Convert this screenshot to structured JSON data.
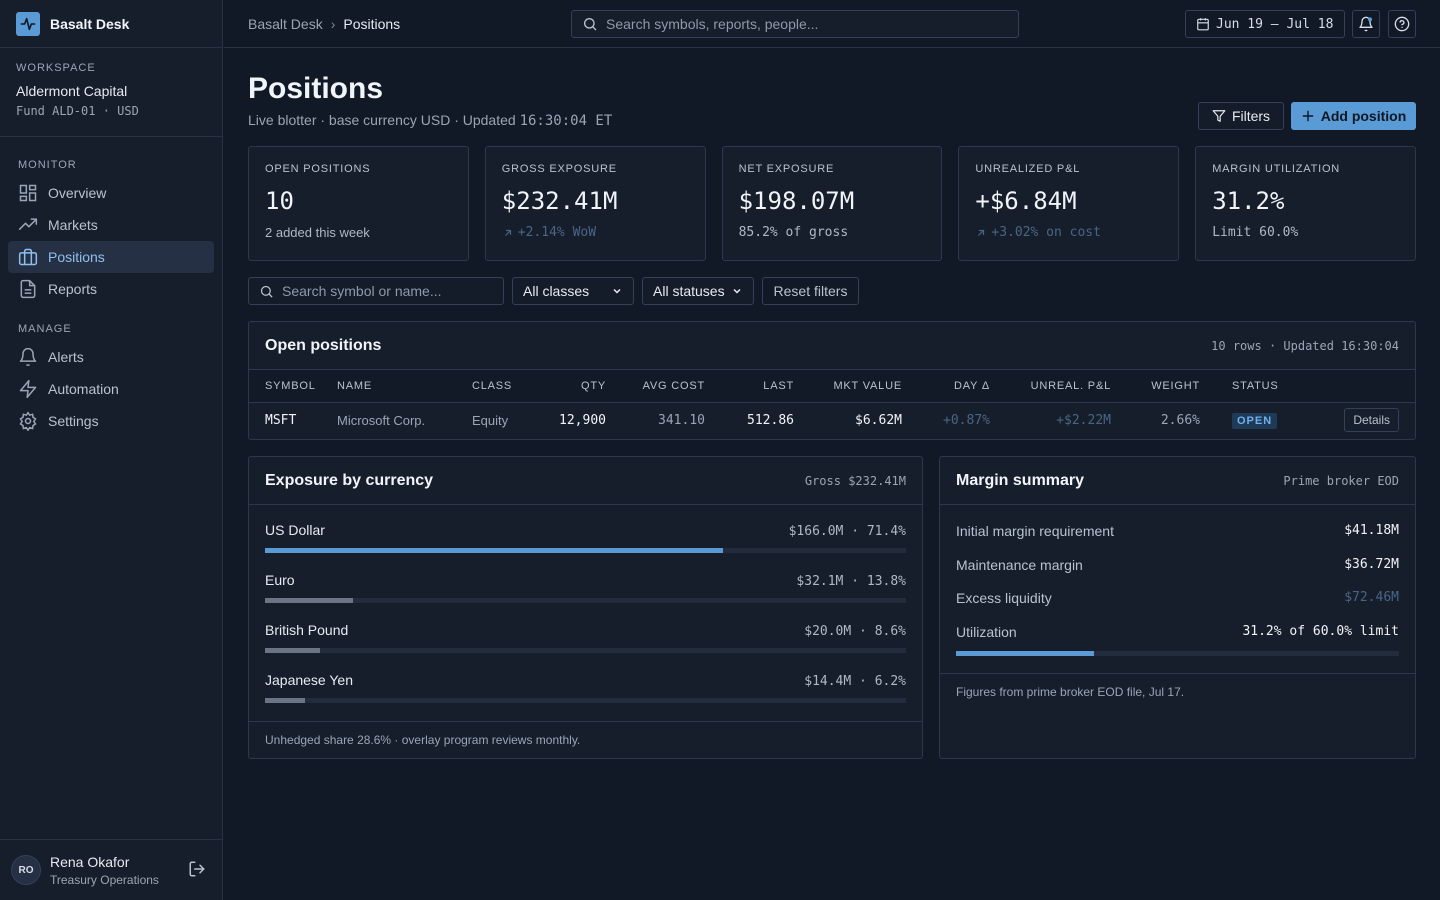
{
  "app": {
    "name": "Basalt Desk",
    "logo_icon": "activity-icon"
  },
  "workspace": {
    "label": "WORKSPACE",
    "name": "Aldermont Capital",
    "fund": "Fund ALD-01 · USD"
  },
  "nav": {
    "monitor_label": "MONITOR",
    "monitor_items": [
      {
        "label": "Overview",
        "icon": "grid-icon"
      },
      {
        "label": "Markets",
        "icon": "trending-up-icon"
      },
      {
        "label": "Positions",
        "icon": "briefcase-icon",
        "active": true
      },
      {
        "label": "Reports",
        "icon": "file-text-icon"
      }
    ],
    "manage_label": "MANAGE",
    "manage_items": [
      {
        "label": "Alerts",
        "icon": "bell-icon"
      },
      {
        "label": "Automation",
        "icon": "zap-icon"
      },
      {
        "label": "Settings",
        "icon": "gear-icon"
      }
    ]
  },
  "user": {
    "initials": "RO",
    "name": "Rena Okafor",
    "role": "Treasury Operations"
  },
  "topbar": {
    "breadcrumb_root": "Basalt Desk",
    "breadcrumb_current": "Positions",
    "search_placeholder": "Search symbols, reports, people...",
    "date_range": "Jun 19 – Jul 18"
  },
  "page": {
    "title": "Positions",
    "subtitle_prefix": "Live blotter · base currency USD · Updated ",
    "subtitle_time": "16:30:04 ET",
    "filters_label": "Filters",
    "add_label": "Add position"
  },
  "stats": [
    {
      "label": "OPEN POSITIONS",
      "value": "10",
      "sub": "2 added this week",
      "trend": "none"
    },
    {
      "label": "GROSS EXPOSURE",
      "value": "$232.41M",
      "sub": "+2.14% WoW",
      "trend": "up"
    },
    {
      "label": "NET EXPOSURE",
      "value": "$198.07M",
      "sub": "85.2% of gross",
      "trend": "none"
    },
    {
      "label": "UNREALIZED P&L",
      "value": "+$6.84M",
      "sub": "+3.02% on cost",
      "trend": "up"
    },
    {
      "label": "MARGIN UTILIZATION",
      "value": "31.2%",
      "sub": "Limit 60.0%",
      "trend": "none"
    }
  ],
  "filters": {
    "search_placeholder": "Search symbol or name...",
    "class_selected": "All classes",
    "status_selected": "All statuses",
    "reset_label": "Reset filters"
  },
  "positions": {
    "title": "Open positions",
    "meta": "10 rows · Updated 16:30:04",
    "columns": [
      "SYMBOL",
      "NAME",
      "CLASS",
      "QTY",
      "AVG COST",
      "LAST",
      "MKT VALUE",
      "DAY Δ",
      "UNREAL. P&L",
      "WEIGHT",
      "STATUS"
    ],
    "rows": [
      {
        "symbol": "MSFT",
        "name": "Microsoft Corp.",
        "class": "Equity",
        "qty": "12,900",
        "avg_cost": "341.10",
        "last": "512.86",
        "mkt_value": "$6.62M",
        "day_delta": "+0.87%",
        "unreal_pnl": "+$2.22M",
        "weight": "2.66%",
        "status": "OPEN",
        "action": "Details"
      }
    ]
  },
  "exposure": {
    "title": "Exposure by currency",
    "meta": "Gross $232.41M",
    "items": [
      {
        "name": "US Dollar",
        "value": "$166.0M · 71.4%",
        "share": 71.4,
        "color": "#5b9bd5"
      },
      {
        "name": "Euro",
        "value": "$32.1M · 13.8%",
        "share": 13.8,
        "color": "#6b7585"
      },
      {
        "name": "British Pound",
        "value": "$20.0M · 8.6%",
        "share": 8.6,
        "color": "#6b7585"
      },
      {
        "name": "Japanese Yen",
        "value": "$14.4M · 6.2%",
        "share": 6.2,
        "color": "#6b7585"
      }
    ],
    "footer": "Unhedged share 28.6% · overlay program reviews monthly."
  },
  "margin": {
    "title": "Margin summary",
    "meta": "Prime broker EOD",
    "rows": [
      {
        "label": "Initial margin requirement",
        "value": "$41.18M"
      },
      {
        "label": "Maintenance margin",
        "value": "$36.72M"
      },
      {
        "label": "Excess liquidity",
        "value": "$72.46M"
      }
    ],
    "utilization_label": "Utilization",
    "utilization_value": "31.2% of 60.0% limit",
    "utilization_share": 31.2,
    "footer": "Figures from prime broker EOD file, Jul 17."
  }
}
